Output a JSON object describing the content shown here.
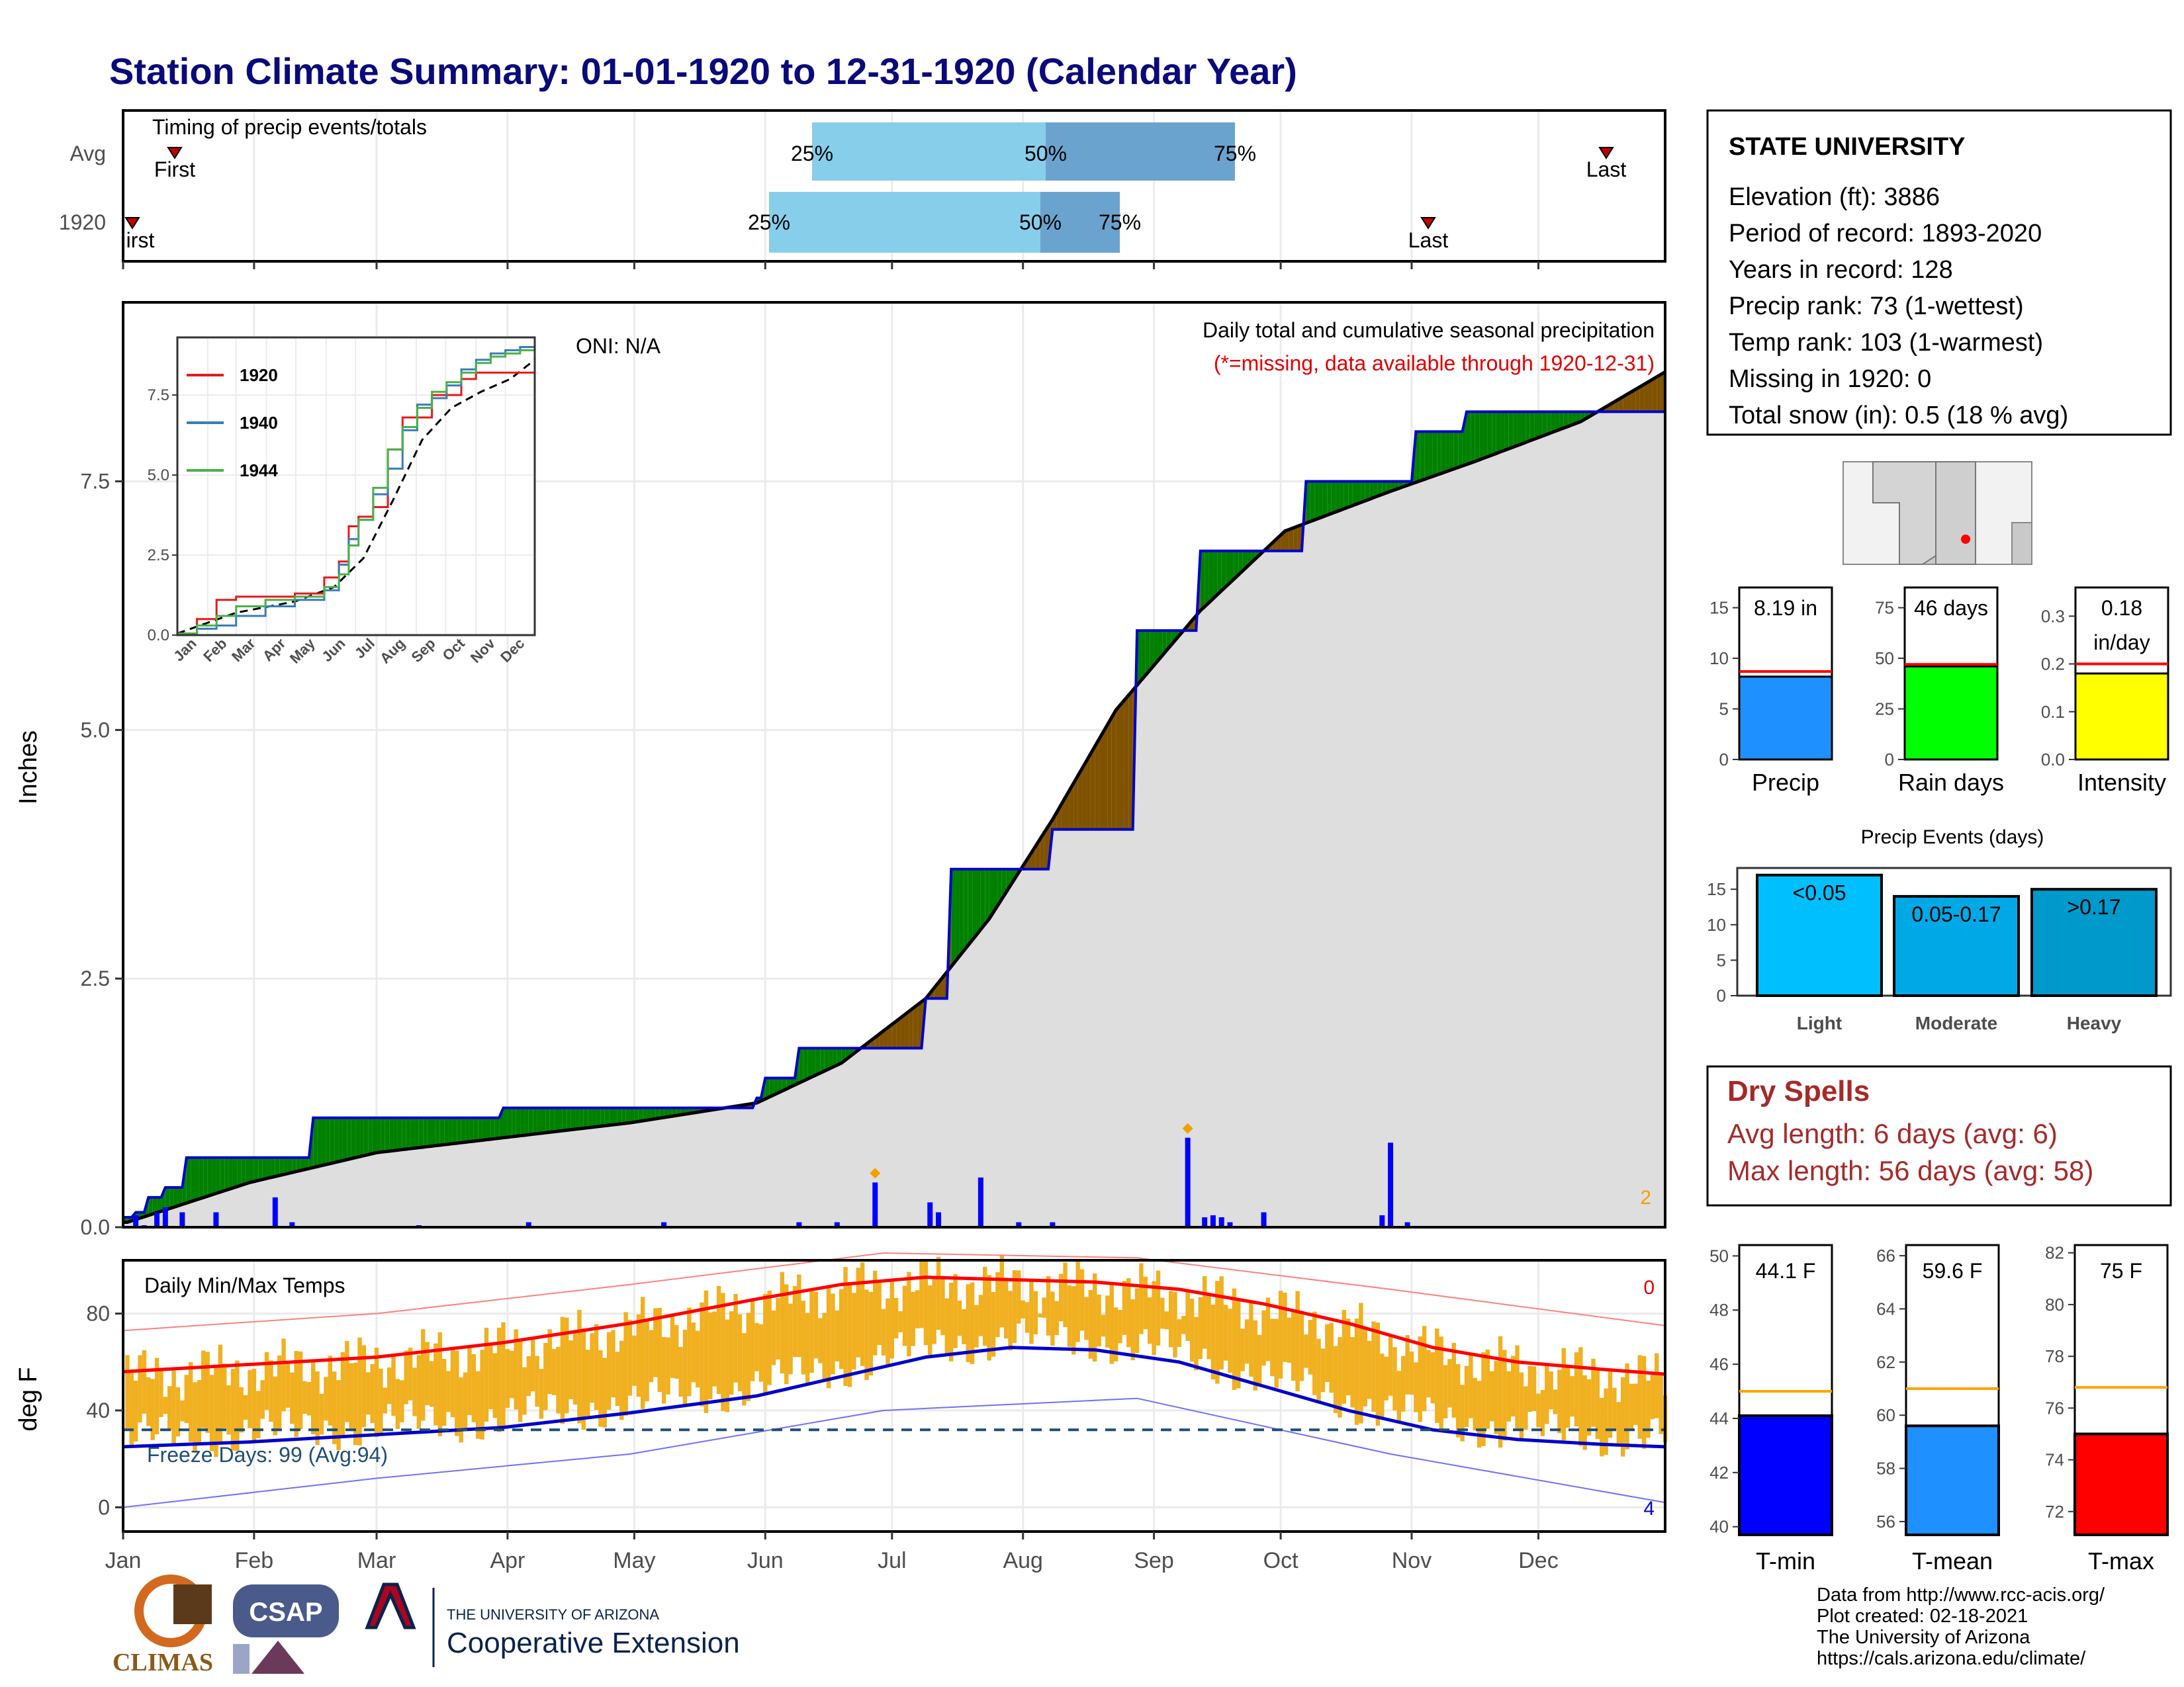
{
  "title": "Station Climate Summary: 01-01-1920 to 12-31-1920 (Calendar Year)",
  "months": [
    "Jan",
    "Feb",
    "Mar",
    "Apr",
    "May",
    "Jun",
    "Jul",
    "Aug",
    "Sep",
    "Oct",
    "Nov",
    "Dec"
  ],
  "timing": {
    "title": "Timing of precip events/totals",
    "rows": [
      "Avg",
      "1920"
    ],
    "avg": {
      "first_label": "First",
      "last_label": "Last",
      "p25": "25%",
      "p50": "50%",
      "p75": "75%"
    },
    "y1920": {
      "first_label": "irst",
      "last_label": "Last",
      "p25": "25%",
      "p50": "50%",
      "p75": "75%"
    }
  },
  "station": {
    "name": "STATE UNIVERSITY",
    "lines": [
      "Elevation (ft): 3886",
      "Period of record: 1893-2020",
      "Years in record: 128",
      "Precip rank: 73 (1-wettest)",
      "Temp rank: 103 (1-warmest)",
      "Missing in 1920: 0",
      "Total snow (in): 0.5 (18 % avg)"
    ]
  },
  "precip_main": {
    "title": "Daily total and cumulative seasonal precipitation",
    "subtitle": "(*=missing, data available through 1920-12-31)",
    "oni": "ONI: N/A",
    "ylabel": "Inches",
    "yticks": [
      "0.0",
      "2.5",
      "5.0",
      "7.5"
    ],
    "corner_value": "2"
  },
  "chart_data": [
    {
      "type": "area",
      "name": "cumulative_precip",
      "ylabel": "Inches",
      "ylim": [
        0,
        9.3
      ],
      "cumulative_1920": {
        "day": [
          1,
          3,
          6,
          10,
          15,
          30,
          45,
          90,
          125,
          150,
          152,
          160,
          190,
          196,
          220,
          240,
          255,
          270,
          280,
          305,
          306,
          318,
          365
        ],
        "value": [
          0.1,
          0.15,
          0.3,
          0.4,
          0.7,
          0.7,
          1.1,
          1.2,
          1.2,
          1.3,
          1.5,
          1.8,
          2.3,
          3.6,
          4.0,
          6.0,
          6.8,
          6.8,
          7.5,
          7.5,
          8.0,
          8.2,
          8.2
        ]
      },
      "average": {
        "day": [
          1,
          30,
          60,
          90,
          120,
          150,
          170,
          190,
          205,
          220,
          235,
          255,
          275,
          300,
          320,
          345,
          365
        ],
        "value": [
          0.05,
          0.45,
          0.75,
          0.9,
          1.05,
          1.25,
          1.65,
          2.3,
          3.1,
          4.1,
          5.2,
          6.2,
          7.0,
          7.4,
          7.7,
          8.1,
          8.6
        ]
      },
      "daily": {
        "day": [
          3,
          5,
          8,
          10,
          14,
          22,
          36,
          40,
          70,
          96,
          128,
          160,
          169,
          178,
          191,
          193,
          203,
          212,
          220,
          252,
          256,
          258,
          260,
          262,
          270,
          298,
          300,
          304
        ],
        "value": [
          0.12,
          0.02,
          0.15,
          0.2,
          0.15,
          0.15,
          0.3,
          0.05,
          0.02,
          0.05,
          0.05,
          0.05,
          0.05,
          0.45,
          0.25,
          0.15,
          0.5,
          0.05,
          0.05,
          0.9,
          0.1,
          0.12,
          0.1,
          0.05,
          0.15,
          0.12,
          0.85,
          0.05
        ]
      }
    },
    {
      "type": "line",
      "name": "inset_cumulative",
      "yticks": [
        "0.0",
        "2.5",
        "5.0",
        "7.5"
      ],
      "series": [
        {
          "name": "1920",
          "color": "#e41a1c",
          "x": [
            0,
            20,
            40,
            60,
            90,
            120,
            150,
            165,
            175,
            185,
            200,
            215,
            230,
            245,
            260,
            275,
            290,
            305,
            320,
            335,
            350,
            365
          ],
          "y": [
            0.05,
            0.5,
            1.1,
            1.2,
            1.2,
            1.3,
            1.8,
            2.3,
            3.4,
            3.7,
            4.0,
            5.8,
            6.8,
            6.8,
            7.5,
            7.5,
            8.0,
            8.2,
            8.2,
            8.2,
            8.2,
            8.2
          ]
        },
        {
          "name": "1940",
          "color": "#377eb8",
          "x": [
            0,
            20,
            40,
            60,
            90,
            120,
            150,
            165,
            175,
            185,
            200,
            215,
            230,
            245,
            260,
            275,
            290,
            305,
            320,
            335,
            350,
            365
          ],
          "y": [
            0.05,
            0.2,
            0.3,
            0.6,
            0.9,
            1.1,
            1.4,
            2.2,
            3.0,
            3.6,
            4.4,
            5.2,
            6.4,
            7.2,
            7.4,
            7.8,
            8.3,
            8.6,
            8.8,
            8.9,
            9.0,
            9.1
          ]
        },
        {
          "name": "1944",
          "color": "#4daf4a",
          "x": [
            0,
            20,
            40,
            60,
            90,
            120,
            150,
            165,
            175,
            185,
            200,
            215,
            230,
            245,
            260,
            275,
            290,
            305,
            320,
            335,
            350,
            365
          ],
          "y": [
            0.05,
            0.3,
            0.6,
            0.9,
            1.1,
            1.2,
            1.5,
            1.9,
            2.8,
            3.6,
            4.6,
            5.8,
            6.5,
            7.1,
            7.6,
            7.9,
            8.2,
            8.5,
            8.7,
            8.8,
            8.9,
            9.1
          ]
        }
      ],
      "average_dashed": {
        "x": [
          0,
          60,
          120,
          160,
          190,
          220,
          250,
          280,
          310,
          340,
          365
        ],
        "y": [
          0.05,
          0.7,
          1.05,
          1.5,
          2.4,
          4.2,
          6.1,
          7.1,
          7.6,
          8.0,
          8.6
        ]
      }
    },
    {
      "type": "bar",
      "name": "summary_bars",
      "panels": [
        {
          "label": "Precip",
          "value_label": "8.19 in",
          "value": 8.19,
          "avg": 8.7,
          "color": "#1e90ff",
          "ylim": [
            0,
            17
          ],
          "ticks": [
            "0",
            "5",
            "10",
            "15"
          ]
        },
        {
          "label": "Rain days",
          "value_label": "46 days",
          "value": 46,
          "avg": 47,
          "color": "#00ff00",
          "ylim": [
            0,
            85
          ],
          "ticks": [
            "0",
            "25",
            "50",
            "75"
          ]
        },
        {
          "label": "Intensity",
          "value_label": "0.18",
          "value_label2": "in/day",
          "value": 0.18,
          "avg": 0.2,
          "color": "#ffff00",
          "ylim": [
            0,
            0.36
          ],
          "ticks": [
            "0.0",
            "0.1",
            "0.2",
            "0.3"
          ]
        }
      ]
    },
    {
      "type": "bar",
      "name": "precip_events",
      "title": "Precip Events (days)",
      "categories": [
        "Light",
        "Moderate",
        "Heavy"
      ],
      "value_labels": [
        "<0.05",
        "0.05-0.17",
        ">0.17"
      ],
      "values": [
        17,
        14,
        15
      ],
      "colors": [
        "#00bfff",
        "#00a9e6",
        "#0099cc"
      ],
      "ylim": [
        0,
        18
      ],
      "ticks": [
        "0",
        "5",
        "10",
        "15"
      ]
    },
    {
      "type": "line",
      "name": "daily_temps",
      "title": "Daily Min/Max Temps",
      "ylabel": "deg F",
      "yticks": [
        "0",
        "40",
        "80"
      ],
      "freeze_label": "Freeze Days: 99 (Avg:94)",
      "freeze_line": 32,
      "top_right": "0",
      "bottom_right": "4",
      "avg_max": {
        "x": [
          0,
          30,
          60,
          90,
          120,
          150,
          170,
          190,
          210,
          230,
          250,
          270,
          290,
          310,
          330,
          350,
          365
        ],
        "y": [
          56,
          59,
          62,
          68,
          76,
          86,
          92,
          95,
          94,
          93,
          90,
          84,
          76,
          66,
          60,
          57,
          55
        ]
      },
      "avg_min": {
        "x": [
          0,
          30,
          60,
          90,
          120,
          150,
          170,
          190,
          210,
          230,
          250,
          270,
          290,
          310,
          330,
          350,
          365
        ],
        "y": [
          25,
          27,
          30,
          33,
          39,
          46,
          54,
          62,
          66,
          65,
          60,
          50,
          40,
          32,
          28,
          26,
          25
        ]
      },
      "record_max": {
        "x": [
          0,
          60,
          120,
          180,
          240,
          300,
          365
        ],
        "y": [
          73,
          80,
          92,
          105,
          103,
          90,
          75
        ]
      },
      "record_min": {
        "x": [
          0,
          60,
          120,
          180,
          240,
          300,
          365
        ],
        "y": [
          0,
          12,
          22,
          40,
          45,
          22,
          2
        ]
      }
    },
    {
      "type": "bar",
      "name": "temp_summary",
      "panels": [
        {
          "label": "T-min",
          "value_label": "44.1 F",
          "value": 44.1,
          "avg": 45,
          "color": "#0000ff",
          "ylim": [
            39.7,
            50.4
          ],
          "ticks": [
            "40",
            "42",
            "44",
            "46",
            "48",
            "50"
          ]
        },
        {
          "label": "T-mean",
          "value_label": "59.6 F",
          "value": 59.6,
          "avg": 61,
          "color": "#1e90ff",
          "ylim": [
            55.5,
            66.4
          ],
          "ticks": [
            "56",
            "58",
            "60",
            "62",
            "64",
            "66"
          ]
        },
        {
          "label": "T-max",
          "value_label": "75 F",
          "value": 75,
          "avg": 76.8,
          "color": "#ff0000",
          "ylim": [
            71.1,
            82.3
          ],
          "ticks": [
            "72",
            "74",
            "76",
            "78",
            "80",
            "82"
          ]
        }
      ]
    }
  ],
  "dry_spells": {
    "title": "Dry Spells",
    "avg_line": "Avg length: 6 days (avg: 6)",
    "max_line": "Max length: 56 days (avg: 58)"
  },
  "footer": {
    "logos": [
      "CLIMAS",
      "CSAP",
      "THE UNIVERSITY OF ARIZONA",
      "Cooperative Extension"
    ],
    "credits": [
      "Data from http://www.rcc-acis.org/",
      "Plot created: 02-18-2021",
      "The University of Arizona",
      "https://cals.arizona.edu/climate/"
    ]
  },
  "colors": {
    "above_avg": "#008000",
    "below_avg": "#7f5200",
    "cumulative_line": "#0000cc",
    "avg_fill": "#dedede",
    "tmax": "#ff0000",
    "tmin": "#0000cc",
    "bars": "#f0b020"
  }
}
